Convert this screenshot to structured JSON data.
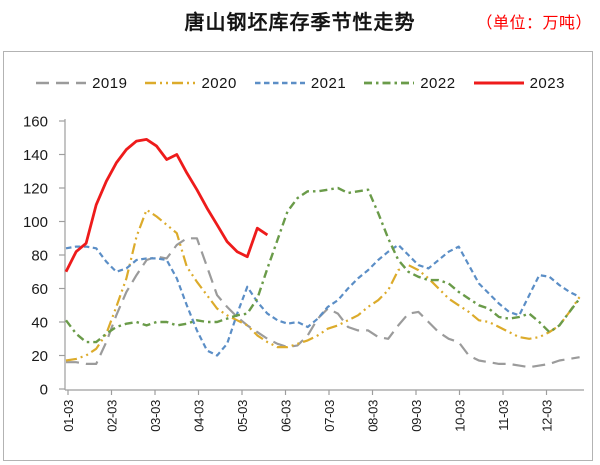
{
  "header": {
    "title": "唐山钢坯库存季节性走势",
    "unit_label": "（单位：万吨）"
  },
  "chart_data": {
    "type": "line",
    "title": "唐山钢坯库存季节性走势",
    "unit": "万吨",
    "grid": false,
    "legend_position": "top",
    "x_frequency": "weekly",
    "x_tick_labels": [
      "01-03",
      "02-03",
      "03-03",
      "04-03",
      "05-03",
      "06-03",
      "07-03",
      "08-03",
      "09-03",
      "10-03",
      "11-03",
      "12-03"
    ],
    "ylim": [
      0,
      160
    ],
    "y_tick_step": 20,
    "y_tick_labels": [
      "0",
      "20",
      "40",
      "60",
      "80",
      "100",
      "120",
      "140",
      "160"
    ],
    "series": [
      {
        "name": "2019",
        "color": "#9b9b9b",
        "dash": "13 7",
        "width": 2.2,
        "values": [
          16,
          16,
          15,
          15,
          28,
          44,
          58,
          68,
          77,
          79,
          78,
          86,
          90,
          90,
          73,
          56,
          49,
          43,
          38,
          34,
          30,
          27,
          25,
          26,
          32,
          42,
          48,
          45,
          37,
          35,
          35,
          31,
          30,
          38,
          45,
          46,
          40,
          34,
          30,
          28,
          20,
          17,
          16,
          15,
          15,
          14,
          13,
          14,
          15,
          17,
          18,
          19
        ]
      },
      {
        "name": "2020",
        "color": "#dcab2b",
        "dash": "11 4 2 4 2 4",
        "width": 2.2,
        "values": [
          17,
          18,
          20,
          24,
          33,
          49,
          66,
          91,
          107,
          103,
          98,
          93,
          73,
          64,
          56,
          48,
          44,
          41,
          38,
          32,
          28,
          25,
          25,
          27,
          29,
          32,
          36,
          38,
          41,
          44,
          49,
          53,
          59,
          71,
          74,
          71,
          66,
          60,
          54,
          50,
          46,
          41,
          40,
          37,
          34,
          31,
          30,
          31,
          34,
          38,
          46,
          55
        ]
      },
      {
        "name": "2021",
        "color": "#5b8ec6",
        "dash": "5.5 3.5",
        "width": 2.2,
        "values": [
          84,
          85,
          85,
          84,
          76,
          70,
          72,
          77,
          78,
          78,
          77,
          66,
          50,
          35,
          23,
          20,
          27,
          45,
          61,
          52,
          45,
          41,
          39,
          40,
          37,
          42,
          49,
          53,
          60,
          66,
          71,
          77,
          82,
          86,
          80,
          74,
          72,
          77,
          82,
          85,
          74,
          63,
          57,
          51,
          46,
          44,
          56,
          68,
          67,
          62,
          58,
          55
        ]
      },
      {
        "name": "2022",
        "color": "#6a9b49",
        "dash": "8 4 2.5 4",
        "width": 2.4,
        "values": [
          41,
          33,
          28,
          28,
          33,
          37,
          39,
          40,
          38,
          40,
          40,
          38,
          39,
          41,
          40,
          40,
          42,
          44,
          45,
          54,
          72,
          89,
          106,
          114,
          118,
          118,
          119,
          120,
          117,
          118,
          119,
          105,
          90,
          77,
          70,
          67,
          65,
          65,
          63,
          58,
          54,
          50,
          48,
          43,
          42,
          43,
          45,
          40,
          34,
          38,
          46,
          54
        ]
      },
      {
        "name": "2023",
        "color": "#ee1b1b",
        "dash": "",
        "width": 2.8,
        "values": [
          70,
          82,
          87,
          110,
          124,
          135,
          143,
          148,
          149,
          145,
          137,
          140,
          129,
          119,
          108,
          98,
          88,
          82,
          79,
          96,
          92
        ]
      }
    ]
  },
  "colors": {
    "axis": "#9e9e9e",
    "border": "#b3b3b3",
    "tick_text": "#1a1a1a",
    "unit_text": "#ff0000",
    "background": "#ffffff"
  }
}
